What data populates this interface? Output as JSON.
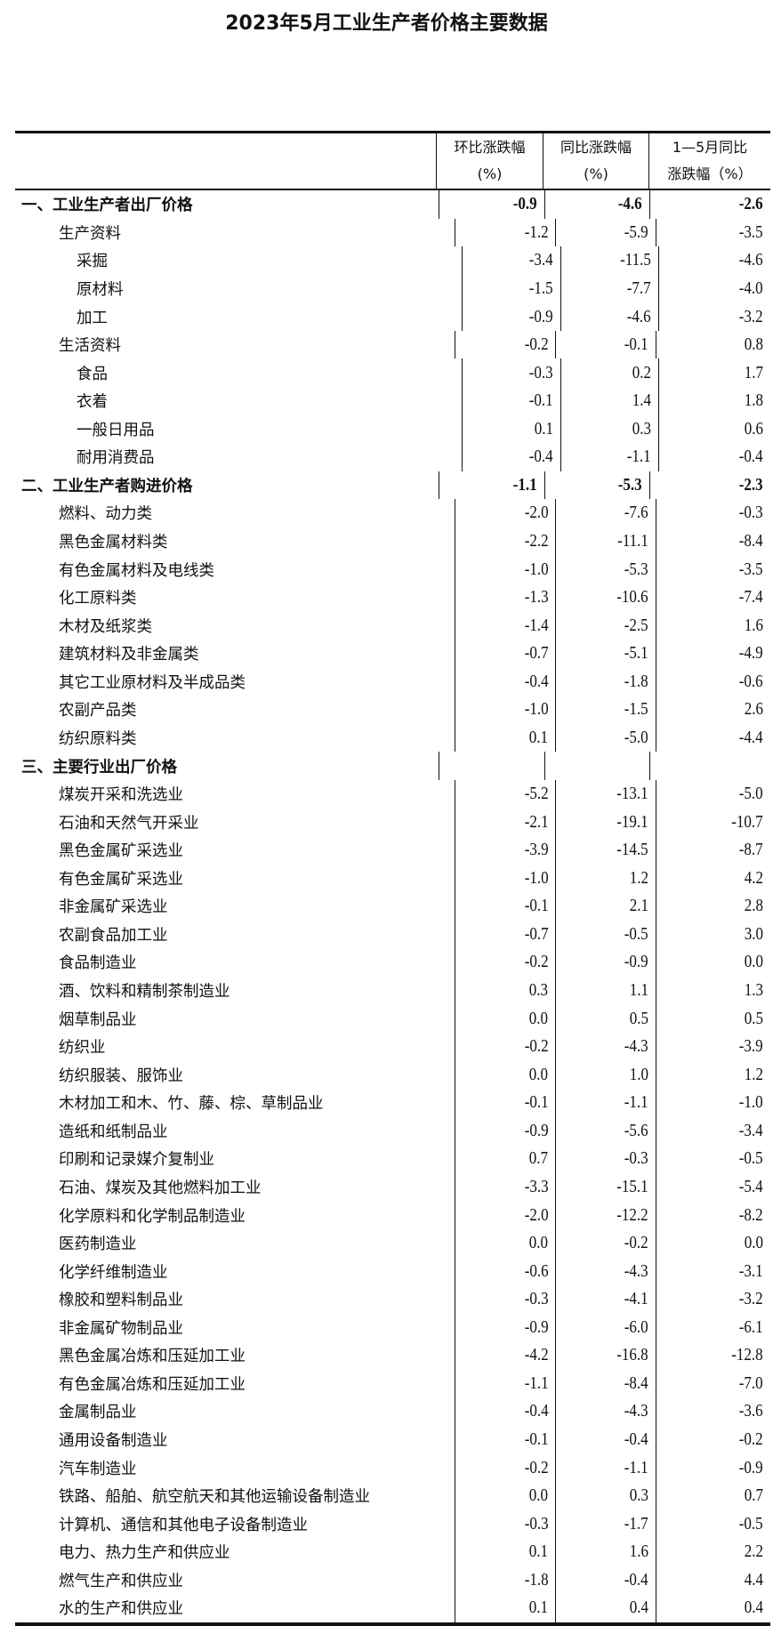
{
  "title": "2023年5月工业生产者价格主要数据",
  "headers": [
    {
      "line1": "环比涨跌幅",
      "line2": "(%)"
    },
    {
      "line1": "同比涨跌幅",
      "line2": "(%)"
    },
    {
      "line1": "1—5月同比",
      "line2": "涨跌幅（%）"
    }
  ],
  "rows": [
    {
      "label": "一、工业生产者出厂价格",
      "level": 0,
      "bold": true,
      "mom": "-0.9",
      "yoy": "-4.6",
      "ytd": "-2.6"
    },
    {
      "label": "生产资料",
      "level": 1,
      "mom": "-1.2",
      "yoy": "-5.9",
      "ytd": "-3.5"
    },
    {
      "label": "采掘",
      "level": 2,
      "mom": "-3.4",
      "yoy": "-11.5",
      "ytd": "-4.6"
    },
    {
      "label": "原材料",
      "level": 2,
      "mom": "-1.5",
      "yoy": "-7.7",
      "ytd": "-4.0"
    },
    {
      "label": "加工",
      "level": 2,
      "mom": "-0.9",
      "yoy": "-4.6",
      "ytd": "-3.2"
    },
    {
      "label": "生活资料",
      "level": 1,
      "mom": "-0.2",
      "yoy": "-0.1",
      "ytd": "0.8"
    },
    {
      "label": "食品",
      "level": 2,
      "mom": "-0.3",
      "yoy": "0.2",
      "ytd": "1.7"
    },
    {
      "label": "衣着",
      "level": 2,
      "mom": "-0.1",
      "yoy": "1.4",
      "ytd": "1.8"
    },
    {
      "label": "一般日用品",
      "level": 2,
      "mom": "0.1",
      "yoy": "0.3",
      "ytd": "0.6"
    },
    {
      "label": "耐用消费品",
      "level": 2,
      "mom": "-0.4",
      "yoy": "-1.1",
      "ytd": "-0.4"
    },
    {
      "label": "二、工业生产者购进价格",
      "level": 0,
      "bold": true,
      "mom": "-1.1",
      "yoy": "-5.3",
      "ytd": "-2.3"
    },
    {
      "label": "燃料、动力类",
      "level": 1,
      "mom": "-2.0",
      "yoy": "-7.6",
      "ytd": "-0.3"
    },
    {
      "label": "黑色金属材料类",
      "level": 1,
      "mom": "-2.2",
      "yoy": "-11.1",
      "ytd": "-8.4"
    },
    {
      "label": "有色金属材料及电线类",
      "level": 1,
      "mom": "-1.0",
      "yoy": "-5.3",
      "ytd": "-3.5"
    },
    {
      "label": "化工原料类",
      "level": 1,
      "mom": "-1.3",
      "yoy": "-10.6",
      "ytd": "-7.4"
    },
    {
      "label": "木材及纸浆类",
      "level": 1,
      "mom": "-1.4",
      "yoy": "-2.5",
      "ytd": "1.6"
    },
    {
      "label": "建筑材料及非金属类",
      "level": 1,
      "mom": "-0.7",
      "yoy": "-5.1",
      "ytd": "-4.9"
    },
    {
      "label": "其它工业原材料及半成品类",
      "level": 1,
      "mom": "-0.4",
      "yoy": "-1.8",
      "ytd": "-0.6"
    },
    {
      "label": "农副产品类",
      "level": 1,
      "mom": "-1.0",
      "yoy": "-1.5",
      "ytd": "2.6"
    },
    {
      "label": "纺织原料类",
      "level": 1,
      "mom": "0.1",
      "yoy": "-5.0",
      "ytd": "-4.4"
    },
    {
      "label": "三、主要行业出厂价格",
      "level": 0,
      "bold": true,
      "mom": "",
      "yoy": "",
      "ytd": ""
    },
    {
      "label": "煤炭开采和洗选业",
      "level": 1,
      "mom": "-5.2",
      "yoy": "-13.1",
      "ytd": "-5.0"
    },
    {
      "label": "石油和天然气开采业",
      "level": 1,
      "mom": "-2.1",
      "yoy": "-19.1",
      "ytd": "-10.7"
    },
    {
      "label": "黑色金属矿采选业",
      "level": 1,
      "mom": "-3.9",
      "yoy": "-14.5",
      "ytd": "-8.7"
    },
    {
      "label": "有色金属矿采选业",
      "level": 1,
      "mom": "-1.0",
      "yoy": "1.2",
      "ytd": "4.2"
    },
    {
      "label": "非金属矿采选业",
      "level": 1,
      "mom": "-0.1",
      "yoy": "2.1",
      "ytd": "2.8"
    },
    {
      "label": "农副食品加工业",
      "level": 1,
      "mom": "-0.7",
      "yoy": "-0.5",
      "ytd": "3.0"
    },
    {
      "label": "食品制造业",
      "level": 1,
      "mom": "-0.2",
      "yoy": "-0.9",
      "ytd": "0.0"
    },
    {
      "label": "酒、饮料和精制茶制造业",
      "level": 1,
      "mom": "0.3",
      "yoy": "1.1",
      "ytd": "1.3"
    },
    {
      "label": "烟草制品业",
      "level": 1,
      "mom": "0.0",
      "yoy": "0.5",
      "ytd": "0.5"
    },
    {
      "label": "纺织业",
      "level": 1,
      "mom": "-0.2",
      "yoy": "-4.3",
      "ytd": "-3.9"
    },
    {
      "label": "纺织服装、服饰业",
      "level": 1,
      "mom": "0.0",
      "yoy": "1.0",
      "ytd": "1.2"
    },
    {
      "label": "木材加工和木、竹、藤、棕、草制品业",
      "level": 1,
      "mom": "-0.1",
      "yoy": "-1.1",
      "ytd": "-1.0"
    },
    {
      "label": "造纸和纸制品业",
      "level": 1,
      "mom": "-0.9",
      "yoy": "-5.6",
      "ytd": "-3.4"
    },
    {
      "label": "印刷和记录媒介复制业",
      "level": 1,
      "mom": "0.7",
      "yoy": "-0.3",
      "ytd": "-0.5"
    },
    {
      "label": "石油、煤炭及其他燃料加工业",
      "level": 1,
      "mom": "-3.3",
      "yoy": "-15.1",
      "ytd": "-5.4"
    },
    {
      "label": "化学原料和化学制品制造业",
      "level": 1,
      "mom": "-2.0",
      "yoy": "-12.2",
      "ytd": "-8.2"
    },
    {
      "label": "医药制造业",
      "level": 1,
      "mom": "0.0",
      "yoy": "-0.2",
      "ytd": "0.0"
    },
    {
      "label": "化学纤维制造业",
      "level": 1,
      "mom": "-0.6",
      "yoy": "-4.3",
      "ytd": "-3.1"
    },
    {
      "label": "橡胶和塑料制品业",
      "level": 1,
      "mom": "-0.3",
      "yoy": "-4.1",
      "ytd": "-3.2"
    },
    {
      "label": "非金属矿物制品业",
      "level": 1,
      "mom": "-0.9",
      "yoy": "-6.0",
      "ytd": "-6.1"
    },
    {
      "label": "黑色金属冶炼和压延加工业",
      "level": 1,
      "mom": "-4.2",
      "yoy": "-16.8",
      "ytd": "-12.8"
    },
    {
      "label": "有色金属冶炼和压延加工业",
      "level": 1,
      "mom": "-1.1",
      "yoy": "-8.4",
      "ytd": "-7.0"
    },
    {
      "label": "金属制品业",
      "level": 1,
      "mom": "-0.4",
      "yoy": "-4.3",
      "ytd": "-3.6"
    },
    {
      "label": "通用设备制造业",
      "level": 1,
      "mom": "-0.1",
      "yoy": "-0.4",
      "ytd": "-0.2"
    },
    {
      "label": "汽车制造业",
      "level": 1,
      "mom": "-0.2",
      "yoy": "-1.1",
      "ytd": "-0.9"
    },
    {
      "label": "铁路、船舶、航空航天和其他运输设备制造业",
      "level": 1,
      "mom": "0.0",
      "yoy": "0.3",
      "ytd": "0.7"
    },
    {
      "label": "计算机、通信和其他电子设备制造业",
      "level": 1,
      "mom": "-0.3",
      "yoy": "-1.7",
      "ytd": "-0.5"
    },
    {
      "label": "电力、热力生产和供应业",
      "level": 1,
      "mom": "0.1",
      "yoy": "1.6",
      "ytd": "2.2"
    },
    {
      "label": "燃气生产和供应业",
      "level": 1,
      "mom": "-1.8",
      "yoy": "-0.4",
      "ytd": "4.4"
    },
    {
      "label": "水的生产和供应业",
      "level": 1,
      "mom": "0.1",
      "yoy": "0.4",
      "ytd": "0.4"
    }
  ]
}
